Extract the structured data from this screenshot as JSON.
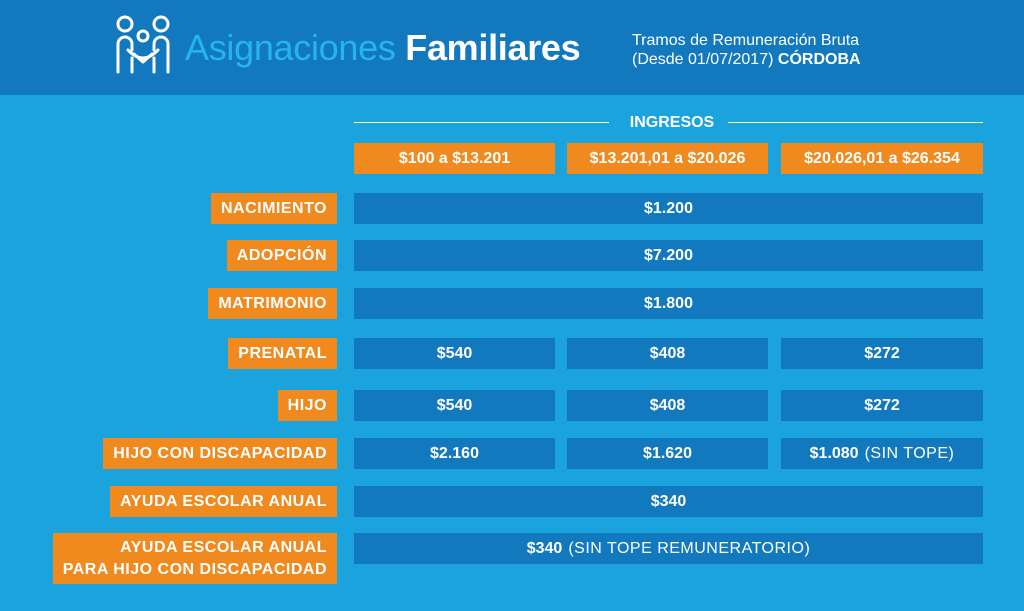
{
  "header": {
    "title_light": "Asignaciones",
    "title_bold": "Familiares",
    "subtitle_line1": "Tramos de Remuneración Bruta",
    "subtitle_line2": "(Desde 01/07/2017)",
    "subtitle_region": "CÓRDOBA",
    "logo_icon": "family-icon"
  },
  "ingresos_label": "INGRESOS",
  "ranges": [
    "$100 a $13.201",
    "$13.201,01  a $20.026",
    "$20.026,01 a $26.354"
  ],
  "rows": [
    {
      "label": "NACIMIENTO",
      "value": "$1.200"
    },
    {
      "label": "ADOPCIÓN",
      "value": "$7.200"
    },
    {
      "label": "MATRIMONIO",
      "value": "$1.800"
    },
    {
      "label": "PRENATAL",
      "values": [
        "$540",
        "$408",
        "$272"
      ]
    },
    {
      "label": "HIJO",
      "values": [
        "$540",
        "$408",
        "$272"
      ]
    },
    {
      "label": "HIJO CON DISCAPACIDAD",
      "values": [
        "$2.160",
        "$1.620",
        "$1.080"
      ],
      "note": "(SIN TOPE)"
    },
    {
      "label": "AYUDA ESCOLAR ANUAL",
      "value": "$340"
    },
    {
      "label_line1": "AYUDA ESCOLAR ANUAL",
      "label_line2": "PARA HIJO CON DISCAPACIDAD",
      "value": "$340",
      "note": "(SIN TOPE REMUNERATORIO)"
    }
  ],
  "colors": {
    "background": "#1aa3dd",
    "header": "#1379bf",
    "orange": "#f08a1e",
    "cell": "#1379bf",
    "title_light": "#25b4ec"
  }
}
